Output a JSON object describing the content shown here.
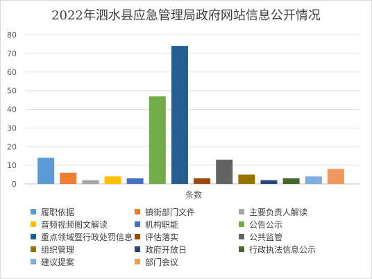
{
  "chart_data": {
    "type": "bar",
    "title": "2022年泗水县应急管理局政府网站信息公开情况",
    "xlabel": "条数",
    "ylabel": "",
    "ylim": [
      0,
      80
    ],
    "yticks": [
      0,
      10,
      20,
      30,
      40,
      50,
      60,
      70,
      80
    ],
    "grid": true,
    "legend_position": "bottom",
    "series": [
      {
        "name": "履职依据",
        "value": 14,
        "color": "#5B9BD5"
      },
      {
        "name": "镇街部门文件",
        "value": 6,
        "color": "#ED7D31"
      },
      {
        "name": "主要负责人解读",
        "value": 2,
        "color": "#A5A5A5"
      },
      {
        "name": "音频视频图文解读",
        "value": 4,
        "color": "#FFC000"
      },
      {
        "name": "机构职能",
        "value": 3,
        "color": "#4472C4"
      },
      {
        "name": "公告公示",
        "value": 47,
        "color": "#70AD47"
      },
      {
        "name": "重点领域暨行政处罚信息",
        "value": 74,
        "color": "#255E91"
      },
      {
        "name": "评估落实",
        "value": 3,
        "color": "#9E480E"
      },
      {
        "name": "公共监管",
        "value": 13,
        "color": "#636363"
      },
      {
        "name": "组织管理",
        "value": 5,
        "color": "#997300"
      },
      {
        "name": "政府开放日",
        "value": 2,
        "color": "#264478"
      },
      {
        "name": "行政执法信息公示",
        "value": 3,
        "color": "#43682B"
      },
      {
        "name": "建议提案",
        "value": 4,
        "color": "#7CAFDD"
      },
      {
        "name": "部门会议",
        "value": 8,
        "color": "#F1975A"
      }
    ]
  }
}
